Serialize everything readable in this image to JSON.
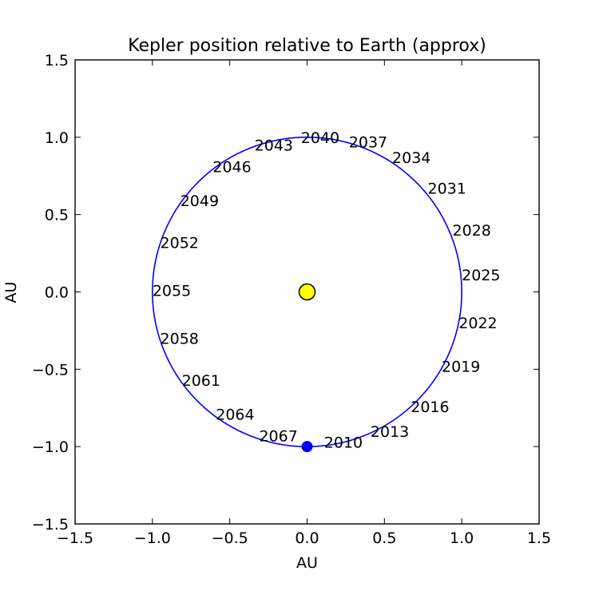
{
  "chart_data": {
    "type": "scatter",
    "title": "Kepler position relative to Earth (approx)",
    "xlabel": "AU",
    "ylabel": "AU",
    "xlim": [
      -1.5,
      1.5
    ],
    "ylim": [
      -1.5,
      1.5
    ],
    "x_ticks": [
      -1.5,
      -1.0,
      -0.5,
      0.0,
      0.5,
      1.0,
      1.5
    ],
    "y_ticks": [
      -1.5,
      -1.0,
      -0.5,
      0.0,
      0.5,
      1.0,
      1.5
    ],
    "x_tick_labels": [
      "−1.5",
      "−1.0",
      "−0.5",
      "0.0",
      "0.5",
      "1.0",
      "1.5"
    ],
    "y_tick_labels": [
      "−1.5",
      "−1.0",
      "−0.5",
      "0.0",
      "0.5",
      "1.0",
      "1.5"
    ],
    "grid": false,
    "orbit": {
      "center": [
        0.0,
        0.0
      ],
      "radius": 1.0,
      "color": "#0000ff"
    },
    "sun": {
      "x": 0.0,
      "y": 0.0,
      "color": "#ffff00"
    },
    "kepler_current": {
      "x": 0.0,
      "y": -1.0,
      "color": "#0000ff"
    },
    "year_labels": [
      {
        "label": "2010",
        "x": 0.11,
        "y": -0.97
      },
      {
        "label": "2013",
        "x": 0.41,
        "y": -0.9
      },
      {
        "label": "2016",
        "x": 0.67,
        "y": -0.74
      },
      {
        "label": "2019",
        "x": 0.87,
        "y": -0.48
      },
      {
        "label": "2022",
        "x": 0.98,
        "y": -0.2
      },
      {
        "label": "2025",
        "x": 1.0,
        "y": 0.11
      },
      {
        "label": "2028",
        "x": 0.94,
        "y": 0.4
      },
      {
        "label": "2031",
        "x": 0.78,
        "y": 0.67
      },
      {
        "label": "2034",
        "x": 0.55,
        "y": 0.87
      },
      {
        "label": "2037",
        "x": 0.27,
        "y": 0.97
      },
      {
        "label": "2040",
        "x": -0.04,
        "y": 1.0
      },
      {
        "label": "2043",
        "x": -0.34,
        "y": 0.95
      },
      {
        "label": "2046",
        "x": -0.61,
        "y": 0.81
      },
      {
        "label": "2049",
        "x": -0.82,
        "y": 0.59
      },
      {
        "label": "2052",
        "x": -0.95,
        "y": 0.32
      },
      {
        "label": "2055",
        "x": -1.0,
        "y": 0.01
      },
      {
        "label": "2058",
        "x": -0.95,
        "y": -0.3
      },
      {
        "label": "2061",
        "x": -0.81,
        "y": -0.57
      },
      {
        "label": "2064",
        "x": -0.59,
        "y": -0.79
      },
      {
        "label": "2067",
        "x": -0.31,
        "y": -0.93
      }
    ]
  }
}
